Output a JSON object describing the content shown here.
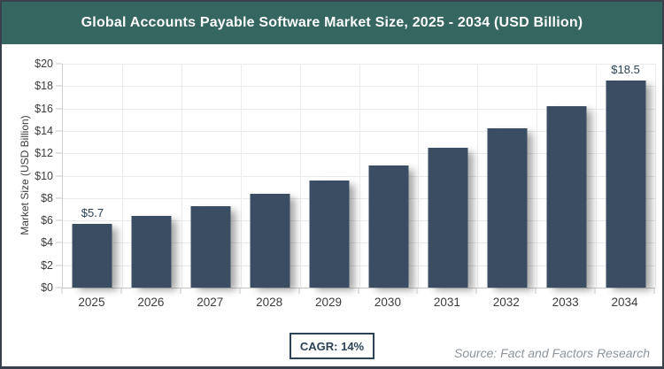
{
  "header": {
    "title": "Global Accounts Payable Software Market Size, 2025 - 2034 (USD Billion)"
  },
  "colors": {
    "header_bg": "#35665F",
    "bar": "#3B4D62",
    "accent_text": "#2D4257",
    "source_text": "#8D959D"
  },
  "chart_data": {
    "type": "bar",
    "title": "Global Accounts Payable Software Market Size, 2025 - 2034 (USD Billion)",
    "categories": [
      "2025",
      "2026",
      "2027",
      "2028",
      "2029",
      "2030",
      "2031",
      "2032",
      "2033",
      "2034"
    ],
    "values": [
      5.7,
      6.4,
      7.3,
      8.4,
      9.6,
      10.9,
      12.5,
      14.2,
      16.2,
      18.5
    ],
    "point_labels": [
      "$5.7",
      "",
      "",
      "",
      "",
      "",
      "",
      "",
      "",
      "$18.5"
    ],
    "xlabel": "",
    "ylabel": "Market Size (USD Billion)",
    "ylim": [
      0,
      20
    ],
    "ytick_step": 2,
    "ytick_labels": [
      "$0",
      "$2",
      "$4",
      "$6",
      "$8",
      "$10",
      "$12",
      "$14",
      "$16",
      "$18",
      "$20"
    ],
    "grid": true,
    "legend": "none"
  },
  "footer": {
    "cagr_label": "CAGR: 14%",
    "source": "Source: Fact and Factors Research"
  }
}
